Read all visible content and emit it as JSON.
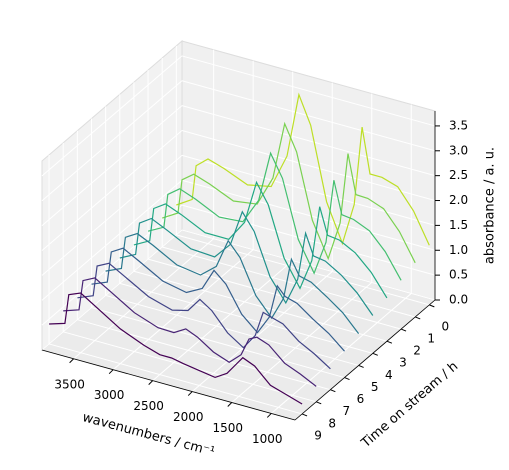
{
  "chart_data": {
    "type": "waterfall3d",
    "xlabel": "wavenumbers / cm⁻¹",
    "ylabel": "Time on stream / h",
    "zlabel": "absorbance / a. u.",
    "x": [
      3900,
      3700,
      3650,
      3500,
      3300,
      3000,
      2700,
      2500,
      2350,
      2200,
      2000,
      1800,
      1650,
      1550,
      1450,
      1300,
      1100,
      900,
      700
    ],
    "xlim": [
      3900,
      700
    ],
    "xticks": [
      3500,
      3000,
      2500,
      2000,
      1500,
      1000
    ],
    "ylim": [
      -0.4,
      9.5
    ],
    "yticks": [
      0,
      1,
      2,
      3,
      4,
      5,
      6,
      7,
      8,
      9
    ],
    "zlim": [
      0,
      3.8
    ],
    "zticks": [
      {
        "value": 0,
        "label": "0.0"
      },
      0.5,
      {
        "value": 1,
        "label": "1.0"
      },
      1.5,
      {
        "value": 2,
        "label": "2.0"
      },
      2.5,
      {
        "value": 3,
        "label": "3.0"
      },
      3.5
    ],
    "grid": true,
    "series": [
      {
        "t": 0,
        "color": "#bddf26",
        "values": [
          0.6,
          0.8,
          1.5,
          1.7,
          1.6,
          1.4,
          1.5,
          2.2,
          3.5,
          2.95,
          1.5,
          0.75,
          1.6,
          3.2,
          2.3,
          2.3,
          2.2,
          1.8,
          1.2
        ]
      },
      {
        "t": 1,
        "color": "#7ad151",
        "values": [
          0.58,
          0.77,
          1.46,
          1.64,
          1.53,
          1.32,
          1.39,
          2.0,
          3.16,
          2.66,
          1.37,
          0.69,
          1.47,
          2.91,
          2.13,
          2.12,
          2.0,
          1.63,
          1.09
        ]
      },
      {
        "t": 2,
        "color": "#44bf70",
        "values": [
          0.56,
          0.73,
          1.41,
          1.59,
          1.47,
          1.24,
          1.28,
          1.8,
          2.81,
          2.37,
          1.23,
          0.64,
          1.33,
          2.62,
          1.97,
          1.94,
          1.8,
          1.47,
          0.98
        ]
      },
      {
        "t": 3,
        "color": "#22a884",
        "values": [
          0.53,
          0.7,
          1.37,
          1.53,
          1.4,
          1.17,
          1.17,
          1.6,
          2.47,
          2.08,
          1.1,
          0.58,
          1.2,
          2.33,
          1.8,
          1.77,
          1.6,
          1.3,
          0.87
        ]
      },
      {
        "t": 4,
        "color": "#21918c",
        "values": [
          0.51,
          0.67,
          1.32,
          1.48,
          1.33,
          1.09,
          1.06,
          1.4,
          2.12,
          1.79,
          0.97,
          0.53,
          1.07,
          2.04,
          1.63,
          1.59,
          1.4,
          1.13,
          0.76
        ]
      },
      {
        "t": 5,
        "color": "#2a788e",
        "values": [
          0.49,
          0.63,
          1.28,
          1.42,
          1.27,
          1.01,
          0.94,
          1.2,
          1.78,
          1.51,
          0.83,
          0.47,
          0.93,
          1.76,
          1.47,
          1.41,
          1.2,
          0.97,
          0.64
        ]
      },
      {
        "t": 6,
        "color": "#355f8d",
        "values": [
          0.47,
          0.6,
          1.23,
          1.37,
          1.2,
          0.93,
          0.83,
          1.0,
          1.43,
          1.22,
          0.7,
          0.42,
          0.8,
          1.47,
          1.3,
          1.23,
          1.0,
          0.8,
          0.53
        ]
      },
      {
        "t": 7,
        "color": "#414487",
        "values": [
          0.44,
          0.57,
          1.19,
          1.31,
          1.13,
          0.86,
          0.72,
          0.8,
          1.09,
          0.93,
          0.57,
          0.36,
          0.67,
          1.18,
          1.13,
          1.06,
          0.8,
          0.63,
          0.42
        ]
      },
      {
        "t": 8,
        "color": "#482475",
        "values": [
          0.42,
          0.53,
          1.14,
          1.26,
          1.07,
          0.78,
          0.61,
          0.6,
          0.74,
          0.64,
          0.43,
          0.31,
          0.53,
          0.89,
          0.97,
          0.88,
          0.6,
          0.47,
          0.31
        ]
      },
      {
        "t": 9,
        "color": "#440154",
        "values": [
          0.4,
          0.5,
          1.1,
          1.2,
          1.0,
          0.7,
          0.5,
          0.4,
          0.4,
          0.35,
          0.3,
          0.25,
          0.4,
          0.6,
          0.8,
          0.7,
          0.4,
          0.3,
          0.2
        ]
      }
    ]
  }
}
